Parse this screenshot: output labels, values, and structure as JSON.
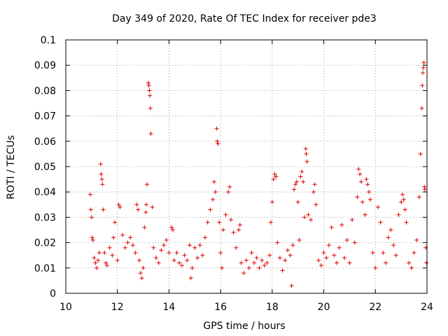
{
  "chart_data": {
    "type": "scatter",
    "title": "Day 349 of 2020, Rate Of TEC Index for receiver pde3",
    "xlabel": "GPS time / hours",
    "ylabel": "ROTI / TECUs",
    "xlim": [
      10,
      24
    ],
    "ylim": [
      0,
      0.1
    ],
    "grid": true,
    "marker": "+",
    "color": "#e00000",
    "x_ticks": [
      "10",
      "12",
      "14",
      "16",
      "18",
      "20",
      "22",
      "24"
    ],
    "y_ticks": [
      "0",
      "0.01",
      "0.02",
      "0.03",
      "0.04",
      "0.05",
      "0.06",
      "0.07",
      "0.08",
      "0.09",
      "0.1"
    ],
    "points": [
      [
        10.95,
        0.039
      ],
      [
        10.97,
        0.033
      ],
      [
        11.0,
        0.03
      ],
      [
        11.02,
        0.022
      ],
      [
        11.05,
        0.021
      ],
      [
        11.1,
        0.014
      ],
      [
        11.15,
        0.012
      ],
      [
        11.2,
        0.01
      ],
      [
        11.25,
        0.013
      ],
      [
        11.3,
        0.016
      ],
      [
        11.35,
        0.051
      ],
      [
        11.37,
        0.047
      ],
      [
        11.4,
        0.045
      ],
      [
        11.42,
        0.043
      ],
      [
        11.45,
        0.033
      ],
      [
        11.5,
        0.016
      ],
      [
        11.55,
        0.012
      ],
      [
        11.6,
        0.011
      ],
      [
        11.7,
        0.018
      ],
      [
        11.8,
        0.015
      ],
      [
        11.85,
        0.022
      ],
      [
        11.9,
        0.028
      ],
      [
        12.0,
        0.013
      ],
      [
        12.05,
        0.035
      ],
      [
        12.1,
        0.034
      ],
      [
        12.2,
        0.023
      ],
      [
        12.3,
        0.018
      ],
      [
        12.4,
        0.02
      ],
      [
        12.5,
        0.022
      ],
      [
        12.6,
        0.019
      ],
      [
        12.7,
        0.016
      ],
      [
        12.75,
        0.035
      ],
      [
        12.8,
        0.033
      ],
      [
        12.85,
        0.013
      ],
      [
        12.9,
        0.008
      ],
      [
        12.95,
        0.006
      ],
      [
        13.0,
        0.01
      ],
      [
        13.05,
        0.026
      ],
      [
        13.1,
        0.032
      ],
      [
        13.12,
        0.035
      ],
      [
        13.15,
        0.043
      ],
      [
        13.2,
        0.083
      ],
      [
        13.22,
        0.082
      ],
      [
        13.24,
        0.08
      ],
      [
        13.26,
        0.078
      ],
      [
        13.28,
        0.073
      ],
      [
        13.3,
        0.063
      ],
      [
        13.35,
        0.034
      ],
      [
        13.4,
        0.018
      ],
      [
        13.5,
        0.014
      ],
      [
        13.6,
        0.012
      ],
      [
        13.7,
        0.017
      ],
      [
        13.8,
        0.019
      ],
      [
        13.9,
        0.021
      ],
      [
        14.0,
        0.016
      ],
      [
        14.1,
        0.026
      ],
      [
        14.15,
        0.025
      ],
      [
        14.2,
        0.013
      ],
      [
        14.3,
        0.016
      ],
      [
        14.4,
        0.012
      ],
      [
        14.5,
        0.011
      ],
      [
        14.6,
        0.015
      ],
      [
        14.7,
        0.013
      ],
      [
        14.8,
        0.019
      ],
      [
        14.85,
        0.006
      ],
      [
        14.9,
        0.01
      ],
      [
        15.0,
        0.018
      ],
      [
        15.1,
        0.014
      ],
      [
        15.2,
        0.019
      ],
      [
        15.3,
        0.015
      ],
      [
        15.4,
        0.022
      ],
      [
        15.5,
        0.028
      ],
      [
        15.6,
        0.033
      ],
      [
        15.7,
        0.037
      ],
      [
        15.75,
        0.044
      ],
      [
        15.8,
        0.04
      ],
      [
        15.85,
        0.065
      ],
      [
        15.87,
        0.06
      ],
      [
        15.9,
        0.059
      ],
      [
        15.95,
        0.028
      ],
      [
        16.0,
        0.016
      ],
      [
        16.05,
        0.01
      ],
      [
        16.1,
        0.025
      ],
      [
        16.2,
        0.031
      ],
      [
        16.3,
        0.04
      ],
      [
        16.35,
        0.042
      ],
      [
        16.4,
        0.029
      ],
      [
        16.5,
        0.024
      ],
      [
        16.6,
        0.018
      ],
      [
        16.7,
        0.025
      ],
      [
        16.75,
        0.027
      ],
      [
        16.8,
        0.012
      ],
      [
        16.9,
        0.008
      ],
      [
        17.0,
        0.013
      ],
      [
        17.1,
        0.01
      ],
      [
        17.2,
        0.016
      ],
      [
        17.3,
        0.012
      ],
      [
        17.4,
        0.014
      ],
      [
        17.5,
        0.01
      ],
      [
        17.6,
        0.013
      ],
      [
        17.7,
        0.011
      ],
      [
        17.8,
        0.012
      ],
      [
        17.9,
        0.015
      ],
      [
        17.95,
        0.028
      ],
      [
        18.0,
        0.036
      ],
      [
        18.05,
        0.045
      ],
      [
        18.1,
        0.047
      ],
      [
        18.15,
        0.046
      ],
      [
        18.2,
        0.02
      ],
      [
        18.3,
        0.014
      ],
      [
        18.4,
        0.009
      ],
      [
        18.5,
        0.013
      ],
      [
        18.6,
        0.017
      ],
      [
        18.7,
        0.015
      ],
      [
        18.75,
        0.003
      ],
      [
        18.8,
        0.019
      ],
      [
        18.85,
        0.041
      ],
      [
        18.9,
        0.043
      ],
      [
        18.95,
        0.044
      ],
      [
        19.0,
        0.036
      ],
      [
        19.05,
        0.021
      ],
      [
        19.1,
        0.046
      ],
      [
        19.15,
        0.048
      ],
      [
        19.2,
        0.044
      ],
      [
        19.25,
        0.03
      ],
      [
        19.3,
        0.057
      ],
      [
        19.32,
        0.055
      ],
      [
        19.35,
        0.052
      ],
      [
        19.4,
        0.031
      ],
      [
        19.5,
        0.029
      ],
      [
        19.6,
        0.04
      ],
      [
        19.65,
        0.043
      ],
      [
        19.7,
        0.035
      ],
      [
        19.8,
        0.013
      ],
      [
        19.9,
        0.011
      ],
      [
        20.0,
        0.016
      ],
      [
        20.1,
        0.014
      ],
      [
        20.2,
        0.019
      ],
      [
        20.3,
        0.026
      ],
      [
        20.4,
        0.015
      ],
      [
        20.5,
        0.012
      ],
      [
        20.6,
        0.018
      ],
      [
        20.7,
        0.027
      ],
      [
        20.8,
        0.014
      ],
      [
        20.9,
        0.021
      ],
      [
        21.0,
        0.012
      ],
      [
        21.1,
        0.029
      ],
      [
        21.2,
        0.02
      ],
      [
        21.3,
        0.038
      ],
      [
        21.35,
        0.049
      ],
      [
        21.4,
        0.047
      ],
      [
        21.45,
        0.044
      ],
      [
        21.5,
        0.036
      ],
      [
        21.6,
        0.031
      ],
      [
        21.65,
        0.045
      ],
      [
        21.7,
        0.043
      ],
      [
        21.75,
        0.04
      ],
      [
        21.8,
        0.037
      ],
      [
        21.9,
        0.016
      ],
      [
        22.0,
        0.01
      ],
      [
        22.1,
        0.034
      ],
      [
        22.2,
        0.028
      ],
      [
        22.3,
        0.016
      ],
      [
        22.4,
        0.012
      ],
      [
        22.5,
        0.022
      ],
      [
        22.6,
        0.025
      ],
      [
        22.7,
        0.019
      ],
      [
        22.8,
        0.015
      ],
      [
        22.9,
        0.031
      ],
      [
        23.0,
        0.036
      ],
      [
        23.05,
        0.039
      ],
      [
        23.1,
        0.037
      ],
      [
        23.15,
        0.033
      ],
      [
        23.2,
        0.028
      ],
      [
        23.3,
        0.012
      ],
      [
        23.4,
        0.01
      ],
      [
        23.5,
        0.016
      ],
      [
        23.6,
        0.021
      ],
      [
        23.7,
        0.038
      ],
      [
        23.75,
        0.055
      ],
      [
        23.8,
        0.073
      ],
      [
        23.82,
        0.082
      ],
      [
        23.84,
        0.087
      ],
      [
        23.86,
        0.089
      ],
      [
        23.88,
        0.091
      ],
      [
        23.9,
        0.042
      ],
      [
        23.92,
        0.041
      ],
      [
        23.95,
        0.018
      ],
      [
        23.98,
        0.012
      ]
    ]
  }
}
